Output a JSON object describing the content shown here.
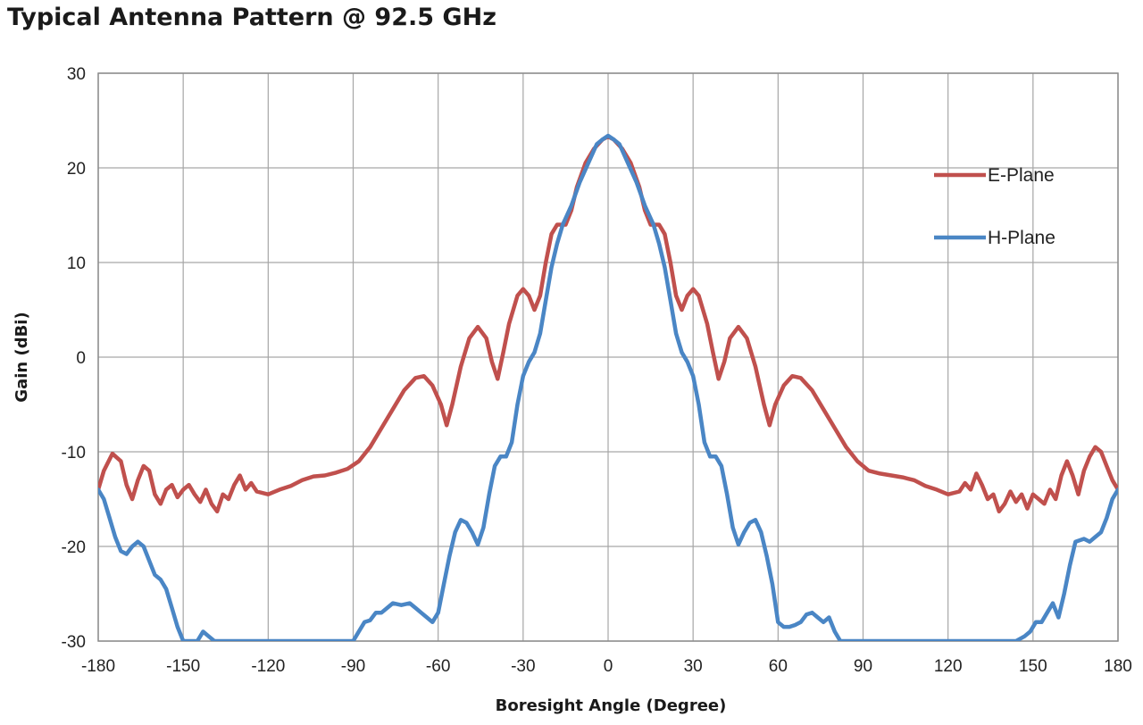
{
  "chart_data": {
    "type": "line",
    "title": "Typical Antenna Pattern @ 92.5 GHz",
    "xlabel": "Boresight Angle (Degree)",
    "ylabel": "Gain (dBi)",
    "xlim": [
      -180,
      180
    ],
    "ylim": [
      -30,
      30
    ],
    "xticks": [
      -180,
      -150,
      -120,
      -90,
      -60,
      -30,
      0,
      30,
      60,
      90,
      120,
      150,
      180
    ],
    "yticks": [
      -30,
      -20,
      -10,
      0,
      10,
      20,
      30
    ],
    "grid": true,
    "legend_position": "top-right",
    "series": [
      {
        "name": "E-Plane",
        "color": "#c0504d",
        "points": [
          [
            -180,
            -14
          ],
          [
            -178,
            -12
          ],
          [
            -175,
            -10.2
          ],
          [
            -172,
            -11
          ],
          [
            -170,
            -13.5
          ],
          [
            -168,
            -15
          ],
          [
            -166,
            -13
          ],
          [
            -164,
            -11.5
          ],
          [
            -162,
            -12
          ],
          [
            -160,
            -14.5
          ],
          [
            -158,
            -15.5
          ],
          [
            -156,
            -14
          ],
          [
            -154,
            -13.5
          ],
          [
            -152,
            -14.8
          ],
          [
            -150,
            -14
          ],
          [
            -148,
            -13.5
          ],
          [
            -146,
            -14.5
          ],
          [
            -144,
            -15.3
          ],
          [
            -142,
            -14
          ],
          [
            -140,
            -15.5
          ],
          [
            -138,
            -16.3
          ],
          [
            -136,
            -14.5
          ],
          [
            -134,
            -15
          ],
          [
            -132,
            -13.5
          ],
          [
            -130,
            -12.5
          ],
          [
            -128,
            -14
          ],
          [
            -126,
            -13.3
          ],
          [
            -124,
            -14.2
          ],
          [
            -120,
            -14.5
          ],
          [
            -116,
            -14
          ],
          [
            -112,
            -13.6
          ],
          [
            -108,
            -13
          ],
          [
            -104,
            -12.6
          ],
          [
            -100,
            -12.5
          ],
          [
            -96,
            -12.2
          ],
          [
            -92,
            -11.8
          ],
          [
            -88,
            -11
          ],
          [
            -84,
            -9.5
          ],
          [
            -80,
            -7.5
          ],
          [
            -76,
            -5.5
          ],
          [
            -72,
            -3.5
          ],
          [
            -68,
            -2.2
          ],
          [
            -65,
            -2
          ],
          [
            -62,
            -3
          ],
          [
            -59,
            -5
          ],
          [
            -57,
            -7.2
          ],
          [
            -55,
            -5
          ],
          [
            -52,
            -1
          ],
          [
            -49,
            2
          ],
          [
            -46,
            3.2
          ],
          [
            -43,
            2
          ],
          [
            -41,
            -0.5
          ],
          [
            -39,
            -2.3
          ],
          [
            -37,
            0.5
          ],
          [
            -35,
            3.5
          ],
          [
            -32,
            6.5
          ],
          [
            -30,
            7.2
          ],
          [
            -28,
            6.5
          ],
          [
            -26,
            5
          ],
          [
            -24,
            6.5
          ],
          [
            -22,
            10
          ],
          [
            -20,
            13
          ],
          [
            -18,
            14
          ],
          [
            -15,
            14
          ],
          [
            -13,
            15.5
          ],
          [
            -11,
            18
          ],
          [
            -8,
            20.5
          ],
          [
            -5,
            22
          ],
          [
            -2,
            23
          ],
          [
            0,
            23.3
          ],
          [
            2,
            23
          ],
          [
            5,
            22
          ],
          [
            8,
            20.5
          ],
          [
            11,
            18
          ],
          [
            13,
            15.5
          ],
          [
            15,
            14
          ],
          [
            18,
            14
          ],
          [
            20,
            13
          ],
          [
            22,
            10
          ],
          [
            24,
            6.5
          ],
          [
            26,
            5
          ],
          [
            28,
            6.5
          ],
          [
            30,
            7.2
          ],
          [
            32,
            6.5
          ],
          [
            35,
            3.5
          ],
          [
            37,
            0.5
          ],
          [
            39,
            -2.3
          ],
          [
            41,
            -0.5
          ],
          [
            43,
            2
          ],
          [
            46,
            3.2
          ],
          [
            49,
            2
          ],
          [
            52,
            -1
          ],
          [
            55,
            -5
          ],
          [
            57,
            -7.2
          ],
          [
            59,
            -5
          ],
          [
            62,
            -3
          ],
          [
            65,
            -2
          ],
          [
            68,
            -2.2
          ],
          [
            72,
            -3.5
          ],
          [
            76,
            -5.5
          ],
          [
            80,
            -7.5
          ],
          [
            84,
            -9.5
          ],
          [
            88,
            -11
          ],
          [
            92,
            -12
          ],
          [
            96,
            -12.3
          ],
          [
            100,
            -12.5
          ],
          [
            104,
            -12.7
          ],
          [
            108,
            -13
          ],
          [
            112,
            -13.6
          ],
          [
            116,
            -14
          ],
          [
            120,
            -14.5
          ],
          [
            124,
            -14.2
          ],
          [
            126,
            -13.3
          ],
          [
            128,
            -14
          ],
          [
            130,
            -12.3
          ],
          [
            132,
            -13.5
          ],
          [
            134,
            -15
          ],
          [
            136,
            -14.5
          ],
          [
            138,
            -16.3
          ],
          [
            140,
            -15.5
          ],
          [
            142,
            -14.2
          ],
          [
            144,
            -15.3
          ],
          [
            146,
            -14.5
          ],
          [
            148,
            -16
          ],
          [
            150,
            -14.5
          ],
          [
            152,
            -15
          ],
          [
            154,
            -15.5
          ],
          [
            156,
            -14
          ],
          [
            158,
            -15
          ],
          [
            160,
            -12.5
          ],
          [
            162,
            -11
          ],
          [
            164,
            -12.5
          ],
          [
            166,
            -14.5
          ],
          [
            168,
            -12
          ],
          [
            170,
            -10.5
          ],
          [
            172,
            -9.5
          ],
          [
            174,
            -10
          ],
          [
            176,
            -11.5
          ],
          [
            178,
            -13
          ],
          [
            180,
            -14
          ]
        ]
      },
      {
        "name": "H-Plane",
        "color": "#4a86c5",
        "points": [
          [
            -180,
            -14
          ],
          [
            -178,
            -15
          ],
          [
            -176,
            -17
          ],
          [
            -174,
            -19
          ],
          [
            -172,
            -20.5
          ],
          [
            -170,
            -20.8
          ],
          [
            -168,
            -20
          ],
          [
            -166,
            -19.5
          ],
          [
            -164,
            -20
          ],
          [
            -162,
            -21.5
          ],
          [
            -160,
            -23
          ],
          [
            -158,
            -23.5
          ],
          [
            -156,
            -24.5
          ],
          [
            -154,
            -26.5
          ],
          [
            -152,
            -28.5
          ],
          [
            -150,
            -30
          ],
          [
            -145,
            -30
          ],
          [
            -143,
            -29
          ],
          [
            -141,
            -29.5
          ],
          [
            -139,
            -30
          ],
          [
            -90,
            -30
          ],
          [
            -88,
            -29
          ],
          [
            -86,
            -28
          ],
          [
            -84,
            -27.8
          ],
          [
            -82,
            -27
          ],
          [
            -80,
            -27
          ],
          [
            -78,
            -26.5
          ],
          [
            -76,
            -26
          ],
          [
            -73,
            -26.2
          ],
          [
            -70,
            -26
          ],
          [
            -68,
            -26.5
          ],
          [
            -66,
            -27
          ],
          [
            -64,
            -27.5
          ],
          [
            -62,
            -28
          ],
          [
            -60,
            -27
          ],
          [
            -58,
            -24
          ],
          [
            -56,
            -21
          ],
          [
            -54,
            -18.5
          ],
          [
            -52,
            -17.2
          ],
          [
            -50,
            -17.5
          ],
          [
            -48,
            -18.5
          ],
          [
            -46,
            -19.8
          ],
          [
            -44,
            -18
          ],
          [
            -42,
            -14.5
          ],
          [
            -40,
            -11.5
          ],
          [
            -38,
            -10.5
          ],
          [
            -36,
            -10.5
          ],
          [
            -34,
            -9
          ],
          [
            -32,
            -5
          ],
          [
            -30,
            -2
          ],
          [
            -28,
            -0.5
          ],
          [
            -26,
            0.5
          ],
          [
            -24,
            2.5
          ],
          [
            -22,
            6
          ],
          [
            -20,
            9.5
          ],
          [
            -18,
            12
          ],
          [
            -16,
            14
          ],
          [
            -13,
            16
          ],
          [
            -10,
            18.5
          ],
          [
            -7,
            20.5
          ],
          [
            -4,
            22.5
          ],
          [
            -2,
            23
          ],
          [
            0,
            23.4
          ],
          [
            2,
            23
          ],
          [
            4,
            22.5
          ],
          [
            7,
            20.5
          ],
          [
            10,
            18.5
          ],
          [
            13,
            16
          ],
          [
            16,
            14
          ],
          [
            18,
            12
          ],
          [
            20,
            9.5
          ],
          [
            22,
            6
          ],
          [
            24,
            2.5
          ],
          [
            26,
            0.5
          ],
          [
            28,
            -0.5
          ],
          [
            30,
            -2
          ],
          [
            32,
            -5
          ],
          [
            34,
            -9
          ],
          [
            36,
            -10.5
          ],
          [
            38,
            -10.5
          ],
          [
            40,
            -11.5
          ],
          [
            42,
            -14.5
          ],
          [
            44,
            -18
          ],
          [
            46,
            -19.8
          ],
          [
            48,
            -18.5
          ],
          [
            50,
            -17.5
          ],
          [
            52,
            -17.2
          ],
          [
            54,
            -18.5
          ],
          [
            56,
            -21
          ],
          [
            58,
            -24
          ],
          [
            60,
            -28
          ],
          [
            62,
            -28.5
          ],
          [
            64,
            -28.5
          ],
          [
            66,
            -28.3
          ],
          [
            68,
            -28
          ],
          [
            70,
            -27.2
          ],
          [
            72,
            -27
          ],
          [
            74,
            -27.5
          ],
          [
            76,
            -28
          ],
          [
            78,
            -27.5
          ],
          [
            80,
            -29
          ],
          [
            82,
            -30
          ],
          [
            140,
            -30
          ],
          [
            144,
            -30
          ],
          [
            147,
            -29.5
          ],
          [
            149,
            -29
          ],
          [
            151,
            -28
          ],
          [
            153,
            -28
          ],
          [
            155,
            -27
          ],
          [
            157,
            -26
          ],
          [
            159,
            -27.5
          ],
          [
            161,
            -25
          ],
          [
            163,
            -22
          ],
          [
            165,
            -19.5
          ],
          [
            168,
            -19.2
          ],
          [
            170,
            -19.5
          ],
          [
            172,
            -19
          ],
          [
            174,
            -18.5
          ],
          [
            176,
            -17
          ],
          [
            178,
            -15
          ],
          [
            180,
            -14
          ]
        ]
      }
    ]
  }
}
